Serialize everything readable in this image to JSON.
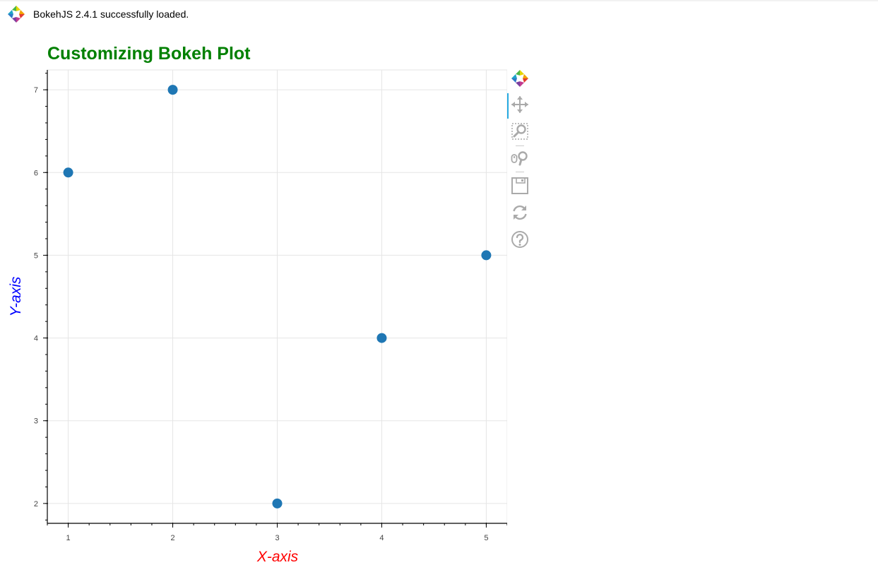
{
  "banner": {
    "message": "BokehJS 2.4.1 successfully loaded."
  },
  "toolbar": {
    "tools": [
      "bokeh-logo-icon",
      "pan-icon",
      "box-zoom-icon",
      "wheel-zoom-icon",
      "save-icon",
      "reset-icon",
      "help-icon"
    ],
    "active_color": "#26aae1",
    "icon_color": "#aaaaaa"
  },
  "chart_data": {
    "type": "scatter",
    "title": "Customizing Bokeh Plot",
    "title_color": "#008000",
    "xlabel": "X-axis",
    "xlabel_color": "#ff0000",
    "ylabel": "Y-axis",
    "ylabel_color": "#0000ff",
    "x": [
      1,
      2,
      3,
      4,
      5
    ],
    "y": [
      6,
      7,
      2,
      4,
      5
    ],
    "marker_color": "#1f77b4",
    "xlim": [
      0.8,
      5.2
    ],
    "ylim": [
      1.76,
      7.24
    ],
    "xticks": [
      1,
      2,
      3,
      4,
      5
    ],
    "yticks": [
      2,
      3,
      4,
      5,
      6,
      7
    ],
    "grid": true
  }
}
